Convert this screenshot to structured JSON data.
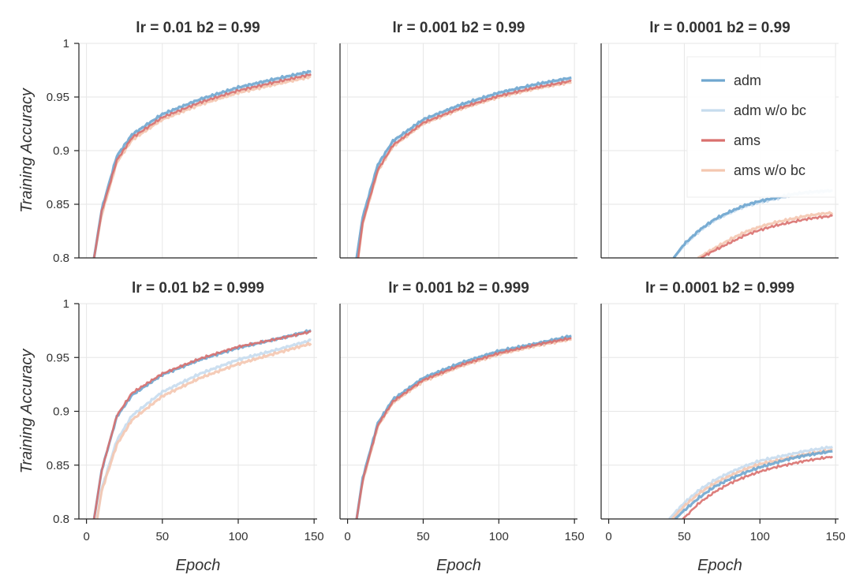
{
  "chart_data": {
    "type": "line",
    "layout": "2x3 small multiples",
    "xlabel": "Epoch",
    "ylabel": "Training Accuracy",
    "xlim": [
      -5,
      152
    ],
    "ylim": [
      0.8,
      1.0
    ],
    "xticks": [
      "0",
      "50",
      "100",
      "150"
    ],
    "yticks": [
      "0.8",
      "0.85",
      "0.9",
      "0.95",
      "1"
    ],
    "grid": true,
    "legend": {
      "placement": "top-right of top-right panel",
      "entries": [
        {
          "label": "adm",
          "color": "#6fa6cf"
        },
        {
          "label": "adm w/o bc",
          "color": "#c6dcee"
        },
        {
          "label": "ams",
          "color": "#d9706e"
        },
        {
          "label": "ams w/o bc",
          "color": "#f4c7b0"
        }
      ]
    },
    "panels": [
      {
        "title": "lr = 0.01   b2 = 0.99",
        "series": [
          {
            "label": "adm",
            "x": [
              5,
              10,
              20,
              30,
              50,
              75,
              100,
              125,
              148
            ],
            "y": [
              0.8,
              0.845,
              0.895,
              0.915,
              0.934,
              0.948,
              0.959,
              0.967,
              0.974
            ]
          },
          {
            "label": "adm w/o bc",
            "x": [
              5,
              10,
              20,
              30,
              50,
              75,
              100,
              125,
              148
            ],
            "y": [
              0.8,
              0.843,
              0.892,
              0.913,
              0.932,
              0.946,
              0.957,
              0.965,
              0.972
            ]
          },
          {
            "label": "ams",
            "x": [
              5,
              10,
              20,
              30,
              50,
              75,
              100,
              125,
              148
            ],
            "y": [
              0.8,
              0.843,
              0.891,
              0.912,
              0.931,
              0.945,
              0.956,
              0.964,
              0.971
            ]
          },
          {
            "label": "ams w/o bc",
            "x": [
              5,
              10,
              20,
              30,
              50,
              75,
              100,
              125,
              148
            ],
            "y": [
              0.8,
              0.84,
              0.889,
              0.91,
              0.929,
              0.943,
              0.954,
              0.962,
              0.969
            ]
          }
        ]
      },
      {
        "title": "lr = 0.001   b2 = 0.99",
        "series": [
          {
            "label": "adm",
            "x": [
              6,
              10,
              20,
              30,
              50,
              75,
              100,
              125,
              148
            ],
            "y": [
              0.8,
              0.838,
              0.887,
              0.909,
              0.929,
              0.943,
              0.954,
              0.962,
              0.968
            ]
          },
          {
            "label": "adm w/o bc",
            "x": [
              6,
              10,
              20,
              30,
              50,
              75,
              100,
              125,
              148
            ],
            "y": [
              0.8,
              0.837,
              0.886,
              0.908,
              0.928,
              0.942,
              0.953,
              0.961,
              0.967
            ]
          },
          {
            "label": "ams",
            "x": [
              7,
              10,
              20,
              30,
              50,
              75,
              100,
              125,
              148
            ],
            "y": [
              0.8,
              0.833,
              0.882,
              0.905,
              0.926,
              0.94,
              0.951,
              0.959,
              0.965
            ]
          },
          {
            "label": "ams w/o bc",
            "x": [
              7,
              10,
              20,
              30,
              50,
              75,
              100,
              125,
              148
            ],
            "y": [
              0.8,
              0.832,
              0.881,
              0.904,
              0.925,
              0.939,
              0.95,
              0.958,
              0.964
            ]
          }
        ]
      },
      {
        "title": "lr = 0.0001   b2 = 0.99",
        "series": [
          {
            "label": "adm",
            "x": [
              43,
              50,
              60,
              70,
              80,
              90,
              100,
              110,
              120,
              130,
              148
            ],
            "y": [
              0.8,
              0.813,
              0.826,
              0.836,
              0.843,
              0.849,
              0.853,
              0.856,
              0.859,
              0.861,
              0.863
            ]
          },
          {
            "label": "adm w/o bc",
            "x": [
              43,
              50,
              60,
              70,
              80,
              90,
              100,
              110,
              120,
              130,
              148
            ],
            "y": [
              0.8,
              0.812,
              0.825,
              0.835,
              0.842,
              0.848,
              0.852,
              0.855,
              0.858,
              0.86,
              0.862
            ]
          },
          {
            "label": "ams",
            "x": [
              61,
              70,
              80,
              90,
              100,
              110,
              120,
              130,
              140,
              148
            ],
            "y": [
              0.8,
              0.807,
              0.814,
              0.821,
              0.826,
              0.83,
              0.833,
              0.836,
              0.838,
              0.839
            ]
          },
          {
            "label": "ams w/o bc",
            "x": [
              59,
              70,
              80,
              90,
              100,
              110,
              120,
              130,
              140,
              148
            ],
            "y": [
              0.8,
              0.809,
              0.817,
              0.824,
              0.829,
              0.833,
              0.836,
              0.839,
              0.841,
              0.842
            ]
          }
        ]
      },
      {
        "title": "lr = 0.01   b2 = 0.999",
        "series": [
          {
            "label": "adm",
            "x": [
              5,
              10,
              20,
              30,
              50,
              75,
              100,
              125,
              148
            ],
            "y": [
              0.8,
              0.845,
              0.895,
              0.915,
              0.934,
              0.948,
              0.959,
              0.967,
              0.975
            ]
          },
          {
            "label": "adm w/o bc",
            "x": [
              7,
              10,
              20,
              30,
              50,
              75,
              100,
              125,
              148
            ],
            "y": [
              0.8,
              0.828,
              0.873,
              0.896,
              0.918,
              0.935,
              0.948,
              0.957,
              0.966
            ]
          },
          {
            "label": "ams",
            "x": [
              5,
              10,
              20,
              30,
              50,
              75,
              100,
              125,
              148
            ],
            "y": [
              0.8,
              0.845,
              0.896,
              0.917,
              0.935,
              0.949,
              0.96,
              0.967,
              0.974
            ]
          },
          {
            "label": "ams w/o bc",
            "x": [
              7,
              10,
              20,
              30,
              50,
              75,
              100,
              125,
              148
            ],
            "y": [
              0.8,
              0.826,
              0.869,
              0.892,
              0.914,
              0.931,
              0.944,
              0.954,
              0.963
            ]
          }
        ]
      },
      {
        "title": "lr = 0.001   b2 = 0.999",
        "series": [
          {
            "label": "adm",
            "x": [
              6,
              10,
              20,
              30,
              50,
              75,
              100,
              125,
              148
            ],
            "y": [
              0.8,
              0.838,
              0.889,
              0.911,
              0.931,
              0.945,
              0.956,
              0.963,
              0.97
            ]
          },
          {
            "label": "adm w/o bc",
            "x": [
              6,
              10,
              20,
              30,
              50,
              75,
              100,
              125,
              148
            ],
            "y": [
              0.8,
              0.837,
              0.888,
              0.91,
              0.93,
              0.944,
              0.955,
              0.962,
              0.969
            ]
          },
          {
            "label": "ams",
            "x": [
              6,
              10,
              20,
              30,
              50,
              75,
              100,
              125,
              148
            ],
            "y": [
              0.8,
              0.836,
              0.887,
              0.909,
              0.929,
              0.943,
              0.954,
              0.962,
              0.968
            ]
          },
          {
            "label": "ams w/o bc",
            "x": [
              6,
              10,
              20,
              30,
              50,
              75,
              100,
              125,
              148
            ],
            "y": [
              0.8,
              0.835,
              0.886,
              0.908,
              0.928,
              0.942,
              0.953,
              0.961,
              0.967
            ]
          }
        ]
      },
      {
        "title": "lr = 0.0001   b2 = 0.999",
        "series": [
          {
            "label": "adm",
            "x": [
              44,
              50,
              60,
              70,
              80,
              90,
              100,
              110,
              120,
              130,
              148
            ],
            "y": [
              0.8,
              0.808,
              0.82,
              0.83,
              0.837,
              0.843,
              0.848,
              0.852,
              0.856,
              0.859,
              0.863
            ]
          },
          {
            "label": "adm w/o bc",
            "x": [
              40,
              50,
              60,
              70,
              80,
              90,
              100,
              110,
              120,
              130,
              148
            ],
            "y": [
              0.8,
              0.815,
              0.827,
              0.836,
              0.843,
              0.849,
              0.854,
              0.857,
              0.86,
              0.863,
              0.867
            ]
          },
          {
            "label": "ams",
            "x": [
              49,
              60,
              70,
              80,
              90,
              100,
              110,
              120,
              130,
              148
            ],
            "y": [
              0.8,
              0.815,
              0.825,
              0.833,
              0.839,
              0.844,
              0.848,
              0.851,
              0.854,
              0.858
            ]
          },
          {
            "label": "ams w/o bc",
            "x": [
              42,
              50,
              60,
              70,
              80,
              90,
              100,
              110,
              120,
              130,
              148
            ],
            "y": [
              0.8,
              0.812,
              0.824,
              0.833,
              0.84,
              0.846,
              0.851,
              0.854,
              0.857,
              0.86,
              0.864
            ]
          }
        ]
      }
    ]
  }
}
